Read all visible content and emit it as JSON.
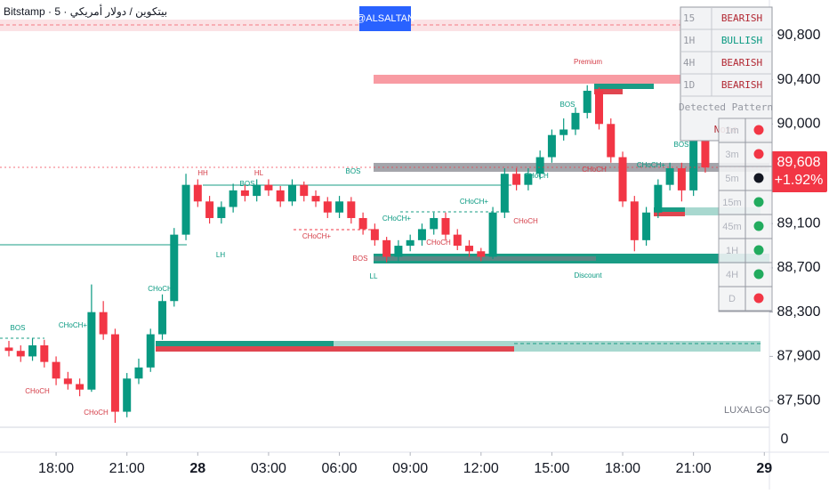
{
  "header": {
    "symbol": "Bitstamp · 5 · بيتكوين / دولار أمريكي",
    "badge": "@ALSALTAN"
  },
  "chart_data": {
    "type": "candlestick",
    "categories": [
      "16:00",
      "16:30",
      "17:00",
      "17:30",
      "18:00",
      "18:30",
      "19:00",
      "19:30",
      "20:00",
      "20:30",
      "21:00",
      "21:30",
      "22:00",
      "22:30",
      "23:00",
      "23:30",
      "00:00",
      "00:30",
      "01:00",
      "01:30",
      "02:00",
      "02:30",
      "03:00",
      "03:30",
      "04:00",
      "04:30",
      "05:00",
      "05:30",
      "06:00",
      "06:30",
      "07:00",
      "07:30",
      "08:00",
      "08:30",
      "09:00",
      "09:30",
      "10:00",
      "10:30",
      "11:00",
      "11:30",
      "12:00",
      "12:30",
      "13:00",
      "13:30",
      "14:00",
      "14:30",
      "15:00",
      "15:30",
      "16:00",
      "16:30",
      "17:00",
      "17:30",
      "18:00",
      "18:30",
      "19:00",
      "19:30",
      "20:00",
      "20:30",
      "21:00",
      "21:30",
      "22:00",
      "22:30",
      "23:00",
      "23:30",
      "00:00"
    ],
    "open": [
      87980,
      87950,
      87900,
      88000,
      87850,
      87700,
      87650,
      87600,
      88300,
      88100,
      87400,
      87700,
      87800,
      88100,
      88400,
      89000,
      89450,
      89300,
      89150,
      89250,
      89400,
      89350,
      89450,
      89400,
      89300,
      89450,
      89350,
      89300,
      89200,
      89300,
      89150,
      89050,
      88950,
      88800,
      88900,
      88950,
      89050,
      89150,
      89000,
      88900,
      88850,
      88800,
      89200,
      89550,
      89450,
      89550,
      89700,
      89900,
      89950,
      90100,
      90300,
      90000,
      89700,
      89300,
      88950,
      89200,
      89450,
      89600,
      89400,
      90300,
      null,
      null,
      null,
      null,
      null
    ],
    "high": [
      88040,
      88000,
      88060,
      88050,
      87900,
      87760,
      87700,
      88550,
      88400,
      88150,
      87750,
      87880,
      88150,
      88460,
      89060,
      89550,
      89500,
      89350,
      89300,
      89460,
      89450,
      89500,
      89500,
      89440,
      89500,
      89480,
      89400,
      89340,
      89350,
      89340,
      89200,
      89100,
      88980,
      88950,
      89000,
      89100,
      89200,
      89200,
      89050,
      88950,
      88880,
      89250,
      89600,
      89600,
      89600,
      89760,
      89950,
      90050,
      90150,
      90350,
      90330,
      90050,
      89750,
      89350,
      89250,
      89500,
      89650,
      89650,
      90450,
      90350,
      null,
      null,
      null,
      null,
      null
    ],
    "low": [
      87900,
      87850,
      87860,
      87800,
      87640,
      87600,
      87540,
      87580,
      88050,
      87300,
      87350,
      87650,
      87760,
      88050,
      88350,
      88950,
      89250,
      89100,
      89100,
      89200,
      89300,
      89300,
      89350,
      89250,
      89260,
      89300,
      89250,
      89150,
      89150,
      89100,
      89000,
      88900,
      88750,
      88760,
      88850,
      88900,
      89000,
      88950,
      88860,
      88800,
      88760,
      88780,
      89150,
      89400,
      89400,
      89500,
      89650,
      89850,
      89900,
      90050,
      89950,
      89650,
      89250,
      88850,
      88900,
      89150,
      89400,
      89300,
      89350,
      89560,
      null,
      null,
      null,
      null,
      null
    ],
    "close": [
      87950,
      87900,
      88000,
      87850,
      87700,
      87650,
      87600,
      88300,
      88100,
      87400,
      87700,
      87800,
      88100,
      88400,
      89000,
      89450,
      89300,
      89150,
      89250,
      89400,
      89350,
      89450,
      89400,
      89300,
      89450,
      89350,
      89300,
      89200,
      89300,
      89150,
      89050,
      88950,
      88800,
      88900,
      88950,
      89050,
      89150,
      89000,
      88900,
      88850,
      88800,
      89200,
      89550,
      89450,
      89550,
      89700,
      89900,
      89950,
      90100,
      90300,
      90000,
      89700,
      89300,
      88950,
      89200,
      89450,
      89600,
      89400,
      90300,
      89608,
      null,
      null,
      null,
      null,
      null
    ],
    "up_color": "#089981",
    "down_color": "#f23645",
    "ylim": [
      87260,
      91120
    ],
    "yticks": [
      {
        "value": 87500,
        "label": "87,500"
      },
      {
        "value": 87900,
        "label": "87,900"
      },
      {
        "value": 88300,
        "label": "88,300"
      },
      {
        "value": 88700,
        "label": "88,700"
      },
      {
        "value": 89100,
        "label": "89,100"
      },
      {
        "value": 90000,
        "label": "90,000"
      },
      {
        "value": 90400,
        "label": "90,400"
      },
      {
        "value": 90800,
        "label": "90,800"
      }
    ],
    "xticks": [
      {
        "value": "18:00",
        "label": "18:00"
      },
      {
        "value": "21:00",
        "label": "21:00"
      },
      {
        "value": "00:00",
        "label": "28"
      },
      {
        "value": "03:00",
        "label": "03:00"
      },
      {
        "value": "06:00",
        "label": "06:00"
      },
      {
        "value": "09:00",
        "label": "09:00"
      },
      {
        "value": "12:00",
        "label": "12:00"
      },
      {
        "value": "15:00",
        "label": "15:00"
      },
      {
        "value": "18:00",
        "label": "18:00"
      },
      {
        "value": "21:00",
        "label": "21:00"
      },
      {
        "value": "00:00",
        "label": "29"
      }
    ],
    "grid": false,
    "last_price": {
      "value": 89608,
      "label": "89,608"
    },
    "change_label": "+1.92%",
    "lower_pane_yticks": [
      0
    ],
    "annotations": [
      "HH",
      "HL",
      "BOS",
      "BOS",
      "LH",
      "BOS",
      "LL",
      "CHoCH",
      "BOS",
      "CHoCH+",
      "CHoCH",
      "CHoCH",
      "CHoCH+",
      "CHoCH+",
      "CHoCH+",
      "CHoCH",
      "CHoCH",
      "CHoCH",
      "BOS",
      "CHoCH",
      "CHoCH+",
      "BOS",
      "Premium",
      "Discount",
      "LUXALGO"
    ]
  },
  "trend_table": {
    "rows": [
      [
        "15",
        "BEARISH"
      ],
      [
        "1H",
        "BULLISH"
      ],
      [
        "4H",
        "BEARISH"
      ],
      [
        "1D",
        "BEARISH"
      ]
    ],
    "pattern_header": "Detected Pattern",
    "pattern": "None"
  },
  "signal_table": {
    "rows": [
      "1m",
      "3m",
      "5m",
      "15m",
      "45m",
      "1H",
      "4H",
      "D"
    ]
  }
}
